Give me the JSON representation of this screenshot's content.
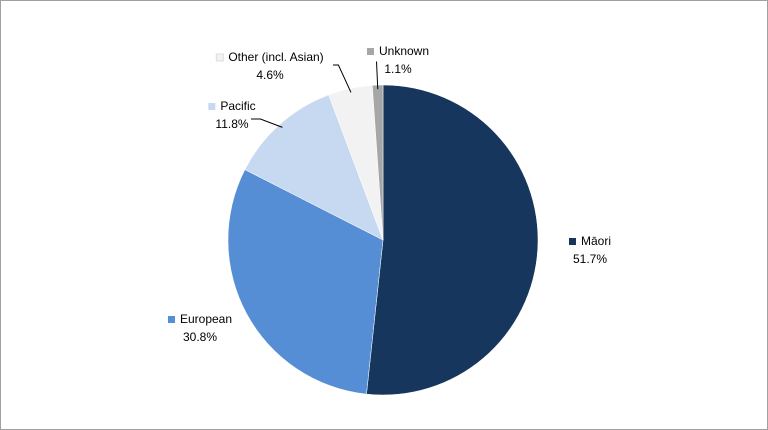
{
  "chart_data": {
    "type": "pie",
    "categories": [
      "Māori",
      "European",
      "Pacific",
      "Other (incl. Asian)",
      "Unknown"
    ],
    "values": [
      51.7,
      30.8,
      11.8,
      4.6,
      1.1
    ],
    "value_labels": [
      "51.7%",
      "30.8%",
      "11.8%",
      "4.6%",
      "1.1%"
    ],
    "colors": [
      "#17365d",
      "#558ed5",
      "#c6d9f1",
      "#f2f2f2",
      "#a6a6a6"
    ]
  }
}
